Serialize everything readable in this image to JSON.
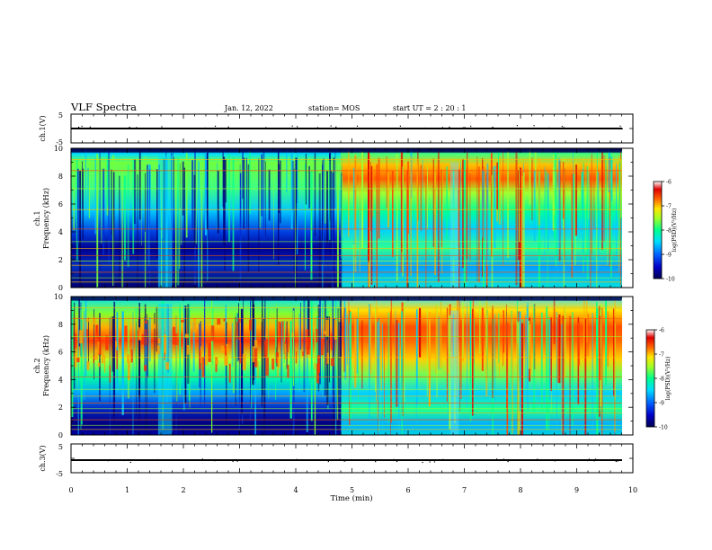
{
  "header": {
    "title": "VLF Spectra",
    "date": "Jan. 12, 2022",
    "station": "station= MOS",
    "start": "start UT =  2 : 20 : 1"
  },
  "colors": {
    "background": "#ffffff",
    "axes": "#000000",
    "colormap": [
      "#000050",
      "#0000a0",
      "#0050ff",
      "#00c8ff",
      "#00ff9a",
      "#8cff32",
      "#ffe600",
      "#ff6a00",
      "#e00000",
      "#ffffff"
    ]
  },
  "chart_data": [
    {
      "type": "line",
      "ylabel": "ch.1(V)",
      "ylim": [
        -5,
        5
      ],
      "yticks": [
        "5",
        "-5"
      ],
      "xlim": [
        0,
        10
      ],
      "series": [
        {
          "values": [
            [
              0,
              0
            ],
            [
              9.8,
              0
            ]
          ]
        }
      ]
    },
    {
      "type": "heatmap",
      "ylabel_line1": "ch.1",
      "ylabel_line2": "Frequency (kHz)",
      "ylim": [
        0,
        10
      ],
      "yticks": [
        "0",
        "2",
        "4",
        "6",
        "8",
        "10"
      ],
      "xlim": [
        0,
        10
      ],
      "data_end_min": 9.8,
      "colorbar": {
        "label": "log(PSD)(V²/Hz)",
        "range": [
          -10,
          -6
        ],
        "ticks": [
          "-6",
          "-7",
          "-8",
          "-9",
          "-10"
        ]
      }
    },
    {
      "type": "heatmap",
      "ylabel_line1": "ch.2",
      "ylabel_line2": "Frequency (kHz)",
      "ylim": [
        0,
        10
      ],
      "yticks": [
        "0",
        "2",
        "4",
        "6",
        "8",
        "10"
      ],
      "xlim": [
        0,
        10
      ],
      "data_end_min": 9.8,
      "colorbar": {
        "label": "log(PSD)(V²/Hz)",
        "range": [
          -10,
          -6
        ],
        "ticks": [
          "-6",
          "-7",
          "-8",
          "-9",
          "-10"
        ]
      }
    },
    {
      "type": "line",
      "ylabel": "ch.3(V)",
      "ylim": [
        -5,
        5
      ],
      "yticks": [
        "5",
        "-5"
      ],
      "xlim": [
        0,
        10
      ],
      "series": [
        {
          "values": [
            [
              0,
              0
            ],
            [
              9.8,
              0
            ]
          ]
        }
      ]
    }
  ],
  "xaxis": {
    "label": "Time (min)",
    "ticks": [
      "0",
      "1",
      "2",
      "3",
      "4",
      "5",
      "6",
      "7",
      "8",
      "9",
      "10"
    ]
  }
}
